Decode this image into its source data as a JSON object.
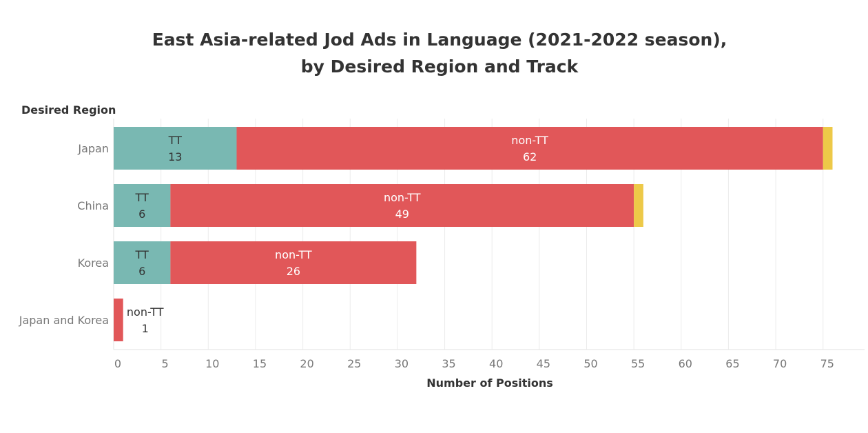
{
  "title_line1": "East Asia-related Jod Ads in Language (2021-2022 season),",
  "title_line2": "by Desired Region and Track",
  "y_axis_title": "Desired Region",
  "x_axis_title": "Number of Positions",
  "colors": {
    "TT": "#79b8b2",
    "non-TT": "#e15759",
    "other": "#edc948",
    "grid": "#ececec",
    "axis_text": "#777777",
    "title_text": "#333333"
  },
  "chart_data": {
    "type": "bar",
    "orientation": "horizontal",
    "stacked": true,
    "title": "East Asia-related Jod Ads in Language (2021-2022 season), by Desired Region and Track",
    "xlabel": "Number of Positions",
    "ylabel": "Desired Region",
    "categories": [
      "Japan",
      "China",
      "Korea",
      "Japan and Korea"
    ],
    "series": [
      {
        "name": "TT",
        "values": [
          13,
          6,
          6,
          0
        ]
      },
      {
        "name": "non-TT",
        "values": [
          62,
          49,
          26,
          1
        ]
      },
      {
        "values": [
          1,
          1,
          0,
          0
        ]
      }
    ],
    "xlim": [
      0,
      78
    ],
    "xticks": [
      0,
      5,
      10,
      15,
      20,
      25,
      30,
      35,
      40,
      45,
      50,
      55,
      60,
      65,
      70,
      75
    ],
    "grid": true,
    "legend": "none"
  }
}
